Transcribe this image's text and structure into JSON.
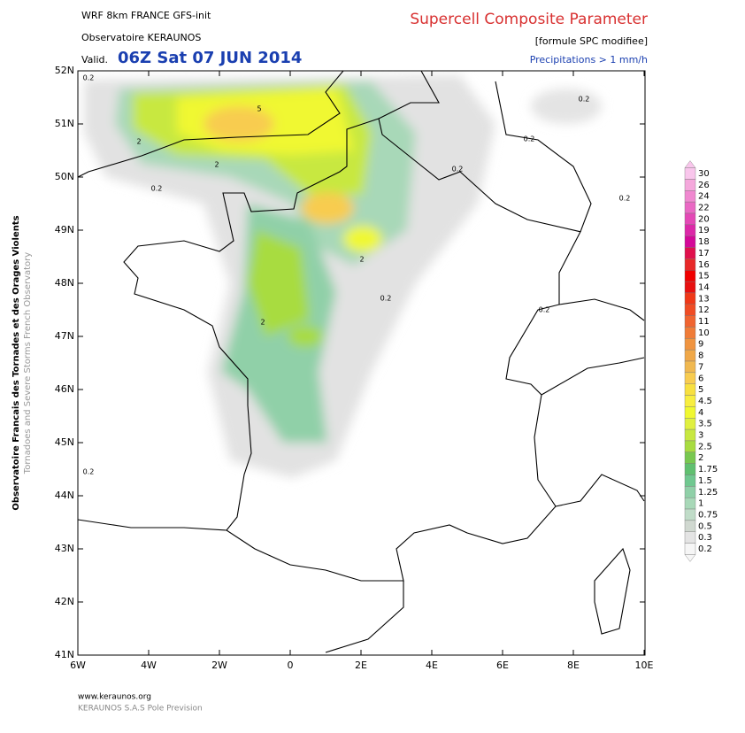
{
  "header": {
    "model": "WRF 8km FRANCE  GFS-init",
    "observatory": "Observatoire KERAUNOS",
    "valid_label": "Valid.",
    "valid_time": "06Z Sat 07 JUN 2014",
    "title": "Supercell Composite Parameter",
    "subtitle": "[formule SPC modifiee]",
    "precip_note": "Precipitations > 1 mm/h"
  },
  "side_text": {
    "french": "Observatoire Francais des Tornades et des Orages Violents",
    "english": "Tornadoes and Severe Storms French Observatory"
  },
  "map": {
    "lat_labels": [
      "52N",
      "51N",
      "50N",
      "49N",
      "48N",
      "47N",
      "46N",
      "45N",
      "44N",
      "43N",
      "42N",
      "41N"
    ],
    "lon_labels": [
      "6W",
      "4W",
      "2W",
      "0",
      "2E",
      "4E",
      "6E",
      "8E",
      "10E"
    ],
    "contour_labels": [
      "0.2",
      "0.2",
      "0.2",
      "0.2",
      "0.2",
      "0.2",
      "0.2",
      "0.2",
      "0.2",
      "5",
      "2",
      "2",
      "2",
      "2"
    ]
  },
  "legend": {
    "labels": [
      "30",
      "26",
      "24",
      "22",
      "20",
      "19",
      "18",
      "17",
      "16",
      "15",
      "14",
      "13",
      "12",
      "11",
      "10",
      "9",
      "8",
      "7",
      "6",
      "5",
      "4.5",
      "4",
      "3.5",
      "3",
      "2.5",
      "2",
      "1.75",
      "1.5",
      "1.25",
      "1",
      "0.75",
      "0.5",
      "0.3",
      "0.2"
    ],
    "colors": [
      "#f9c6ec",
      "#f5a8dc",
      "#f088d0",
      "#ea68c4",
      "#e448b6",
      "#dc28a8",
      "#d40898",
      "#e0104c",
      "#e82828",
      "#f00000",
      "#e81010",
      "#f03818",
      "#f04c24",
      "#f06430",
      "#f07c38",
      "#f09440",
      "#f0a848",
      "#f0b850",
      "#f8cc50",
      "#f8e040",
      "#f8ee40",
      "#f0f830",
      "#e0f040",
      "#c8e840",
      "#a8dc40",
      "#78c850",
      "#60c070",
      "#70c890",
      "#90d0a8",
      "#a8d8b8",
      "#c0dcc8",
      "#d0d8d0",
      "#e4e4e4",
      "#f6f6f6"
    ]
  },
  "footer": {
    "site": "www.keraunos.org",
    "company": "KERAUNOS S.A.S Pole Prevision"
  }
}
